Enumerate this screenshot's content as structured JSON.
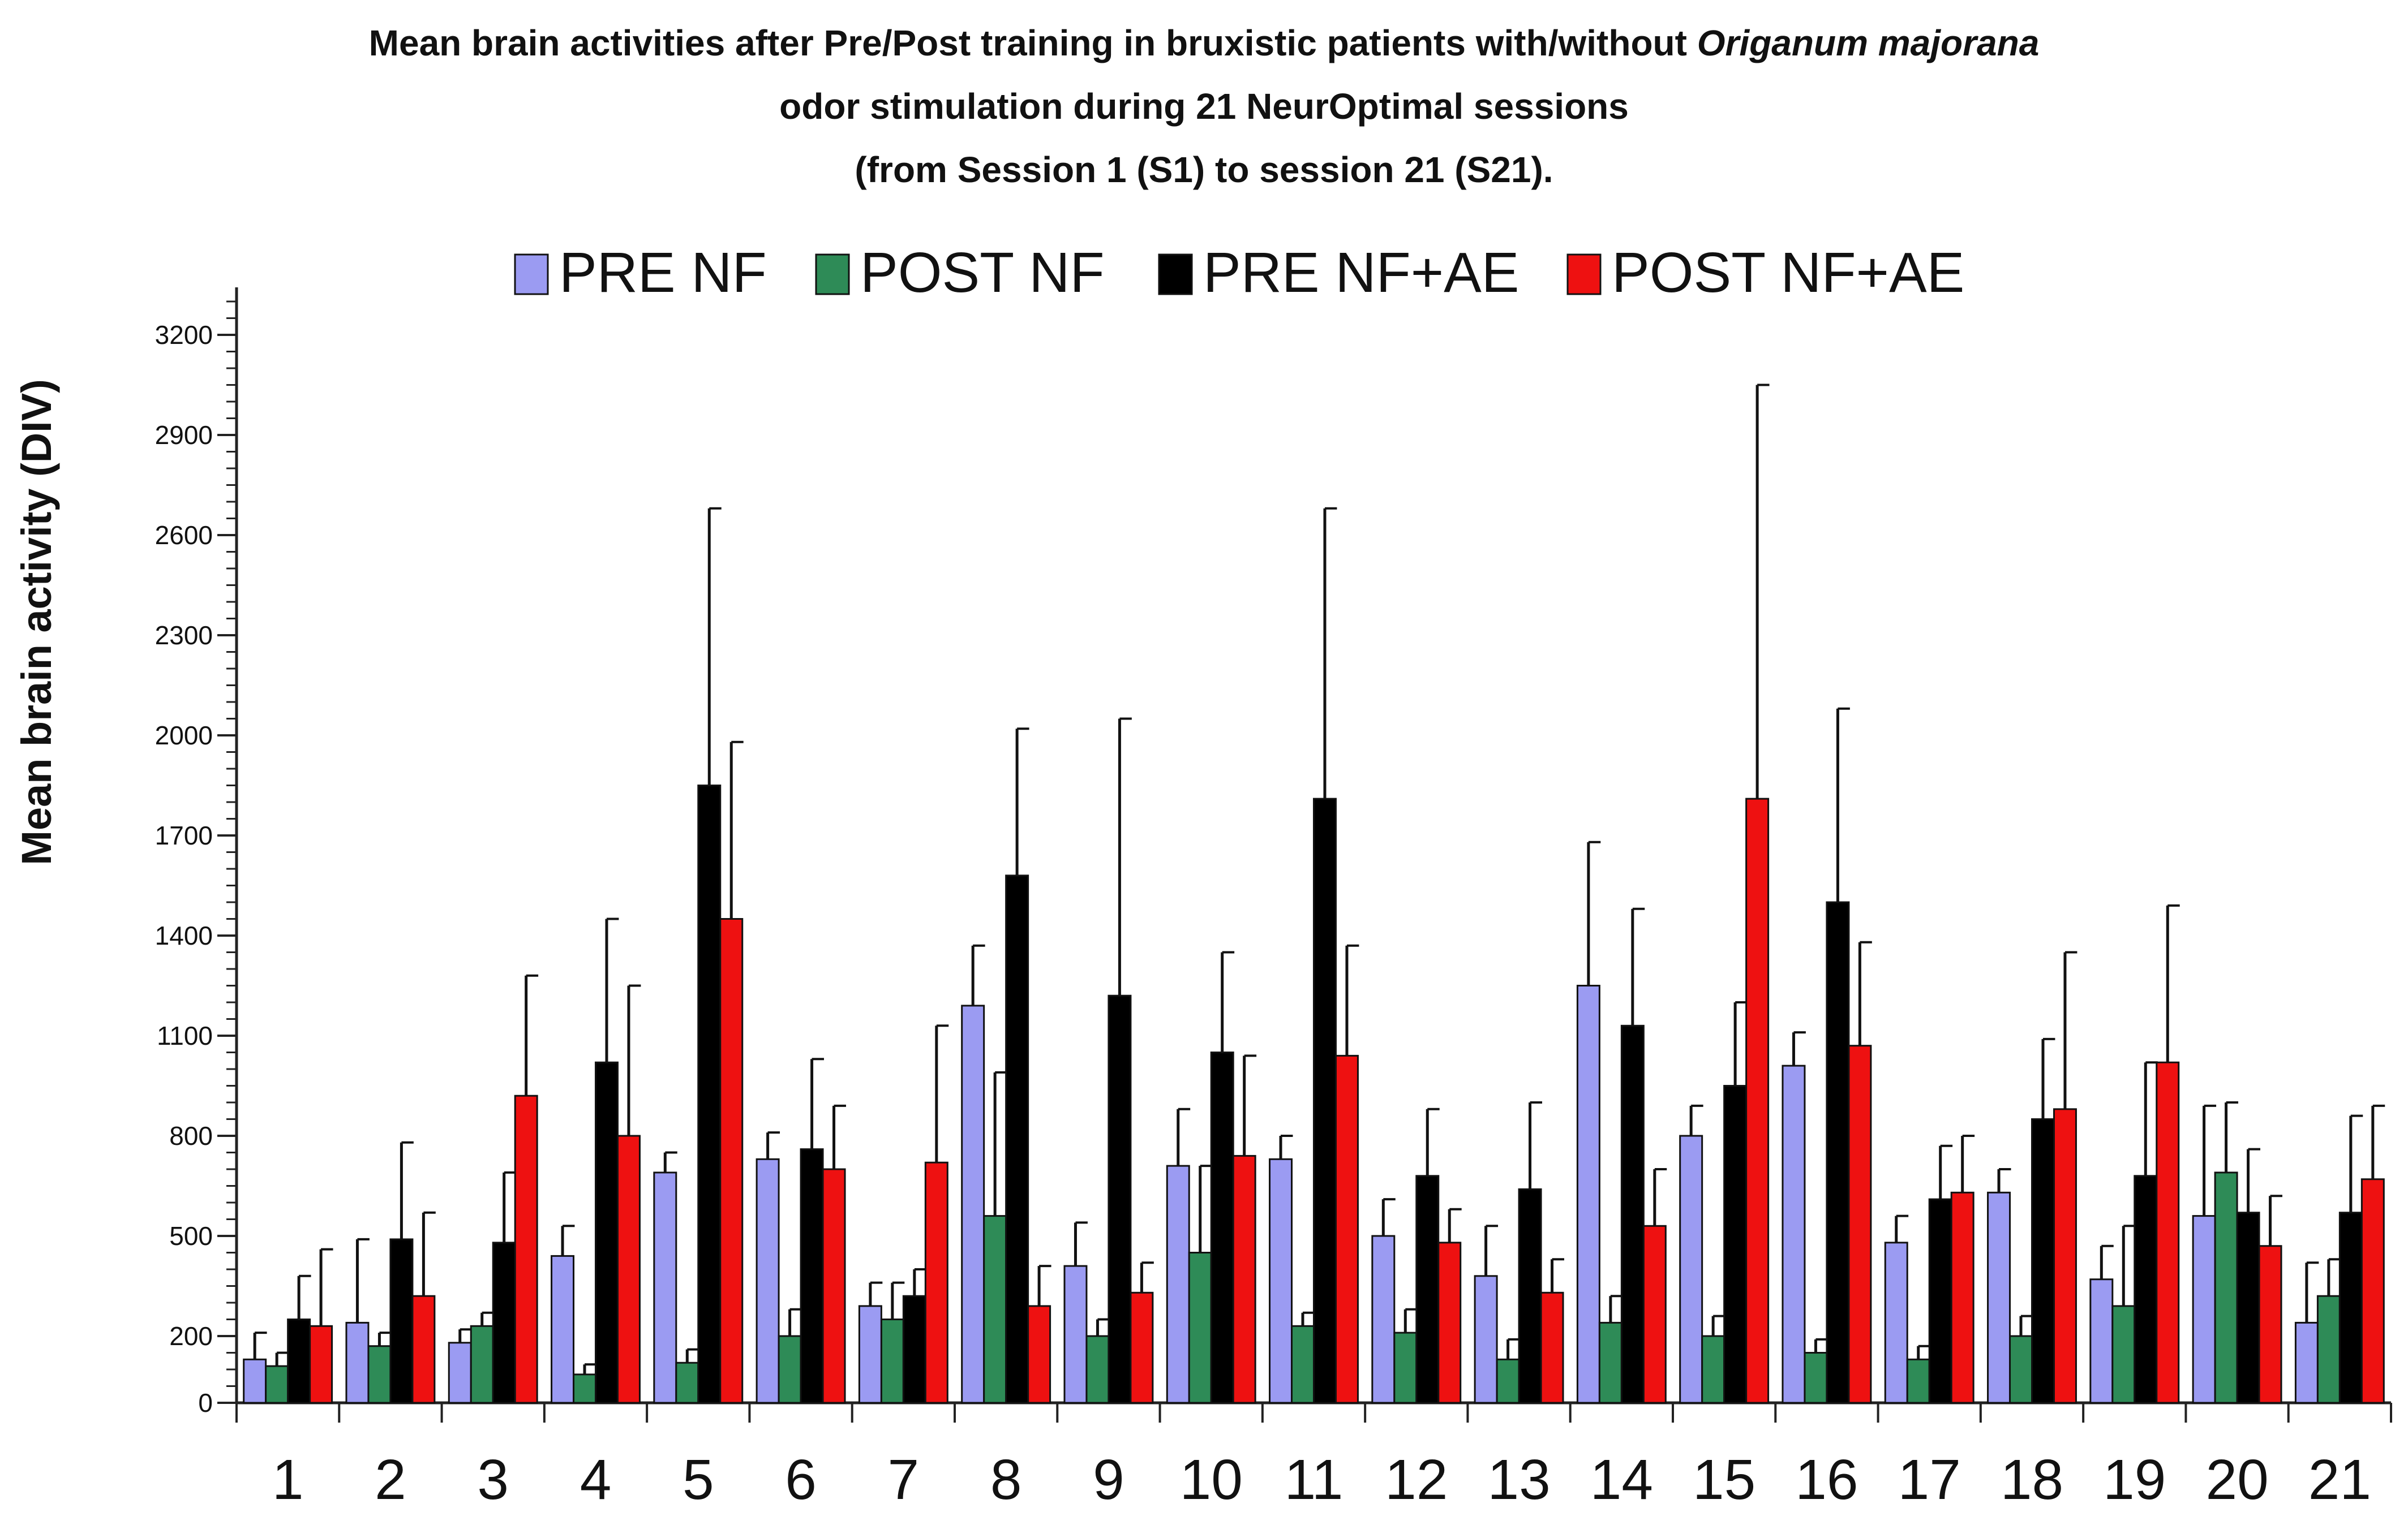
{
  "chart_data": {
    "type": "bar",
    "title": {
      "line1_prefix": "Mean brain activities after Pre/Post training in bruxistic patients with/without ",
      "line1_italic": "Origanum majorana",
      "line2": "odor stimulation during 21 NeurOptimal sessions",
      "line3": "(from Session 1 (S1) to session 21 (S21)."
    },
    "ylabel": "Mean brain activity (DIV)",
    "xlabel": "",
    "ylim": [
      0,
      3300
    ],
    "yticks": [
      0,
      200,
      500,
      800,
      1100,
      1400,
      1700,
      2000,
      2300,
      2600,
      2900,
      3200
    ],
    "grid": false,
    "legend_position": "top",
    "categories": [
      "1",
      "2",
      "3",
      "4",
      "5",
      "6",
      "7",
      "8",
      "9",
      "10",
      "11",
      "12",
      "13",
      "14",
      "15",
      "16",
      "17",
      "18",
      "19",
      "20",
      "21"
    ],
    "series": [
      {
        "name": "PRE NF",
        "color": "#9b9bf2",
        "values": [
          130,
          240,
          180,
          440,
          690,
          730,
          290,
          1190,
          410,
          710,
          730,
          500,
          380,
          1250,
          800,
          1010,
          480,
          630,
          370,
          560,
          240
        ],
        "errors": [
          80,
          250,
          40,
          90,
          60,
          80,
          70,
          180,
          130,
          170,
          70,
          110,
          150,
          430,
          90,
          100,
          80,
          70,
          100,
          330,
          180
        ]
      },
      {
        "name": "POST NF",
        "color": "#2e8b57",
        "values": [
          110,
          170,
          230,
          85,
          120,
          200,
          250,
          560,
          200,
          450,
          230,
          210,
          130,
          240,
          200,
          150,
          130,
          200,
          290,
          690,
          320
        ],
        "errors": [
          40,
          40,
          40,
          30,
          40,
          80,
          110,
          430,
          50,
          260,
          40,
          70,
          60,
          80,
          60,
          40,
          40,
          60,
          240,
          210,
          110
        ]
      },
      {
        "name": "PRE NF+AE",
        "color": "#000000",
        "values": [
          250,
          490,
          480,
          1020,
          1850,
          760,
          320,
          1580,
          1220,
          1050,
          1810,
          680,
          640,
          1130,
          950,
          1500,
          610,
          850,
          680,
          570,
          570
        ],
        "errors": [
          130,
          290,
          210,
          430,
          830,
          270,
          80,
          440,
          830,
          300,
          870,
          200,
          260,
          350,
          250,
          580,
          160,
          240,
          340,
          190,
          290
        ]
      },
      {
        "name": "POST NF+AE",
        "color": "#ee1111",
        "values": [
          230,
          320,
          920,
          800,
          1450,
          700,
          720,
          290,
          330,
          740,
          1040,
          480,
          330,
          530,
          1810,
          1070,
          630,
          880,
          1020,
          470,
          670
        ],
        "errors": [
          230,
          250,
          360,
          450,
          530,
          190,
          410,
          120,
          90,
          300,
          330,
          100,
          100,
          170,
          1240,
          310,
          170,
          470,
          470,
          150,
          220
        ]
      }
    ]
  }
}
